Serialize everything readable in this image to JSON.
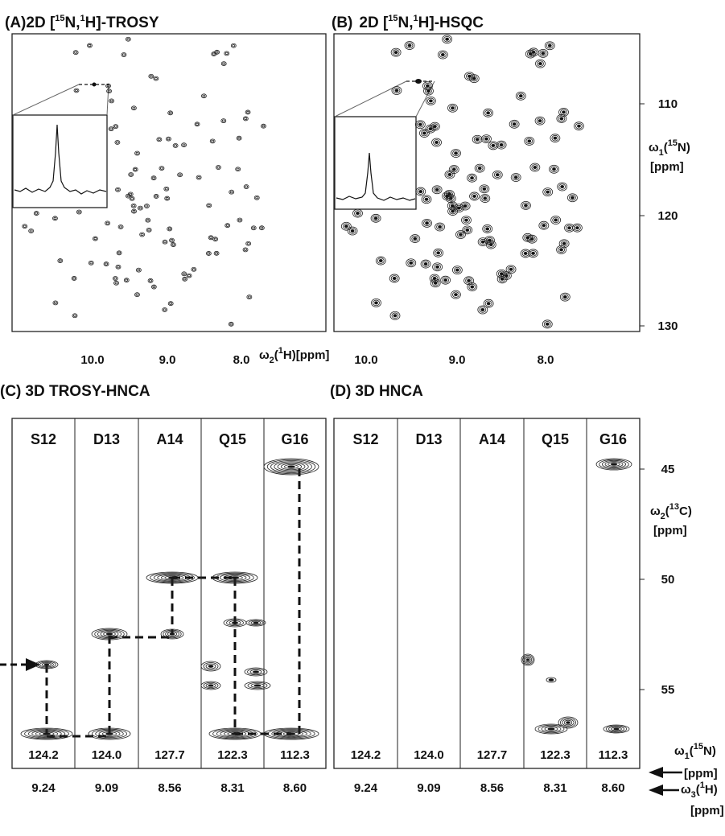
{
  "panel_a": {
    "label": "(A)",
    "title_parts": [
      "2D [",
      "15",
      "N,",
      "1",
      "H]-TROSY"
    ],
    "x_ticks": [
      "10.0",
      "9.0",
      "8.0"
    ],
    "x_axis_label": [
      "ω",
      "2",
      "(",
      "1",
      "H)[ppm]"
    ]
  },
  "panel_b": {
    "label": "(B)",
    "title_parts": [
      "2D [",
      "15",
      "N,",
      "1",
      "H]-HSQC"
    ],
    "x_ticks": [
      "10.0",
      "9.0",
      "8.0"
    ],
    "y_ticks": [
      "110",
      "120",
      "130"
    ],
    "y_axis_label": [
      "ω",
      "1",
      "(",
      "15",
      "N)",
      "[ppm]"
    ]
  },
  "panel_c": {
    "label": "(C)",
    "title": "3D TROSY-HNCA",
    "strips": [
      {
        "residue": "S12",
        "n15": "124.2",
        "h1": "9.24"
      },
      {
        "residue": "D13",
        "n15": "124.0",
        "h1": "9.09"
      },
      {
        "residue": "A14",
        "n15": "127.7",
        "h1": "8.56"
      },
      {
        "residue": "Q15",
        "n15": "122.3",
        "h1": "8.31"
      },
      {
        "residue": "G16",
        "n15": "112.3",
        "h1": "8.60"
      }
    ]
  },
  "panel_d": {
    "label": "(D)",
    "title": "3D HNCA",
    "strips": [
      {
        "residue": "S12",
        "n15": "124.2",
        "h1": "9.24"
      },
      {
        "residue": "D13",
        "n15": "124.0",
        "h1": "9.09"
      },
      {
        "residue": "A14",
        "n15": "127.7",
        "h1": "8.56"
      },
      {
        "residue": "Q15",
        "n15": "122.3",
        "h1": "8.31"
      },
      {
        "residue": "G16",
        "n15": "112.3",
        "h1": "8.60"
      }
    ]
  },
  "c13_axis": {
    "ticks": [
      "45",
      "50",
      "55"
    ],
    "label": [
      "ω",
      "2",
      "(",
      "13",
      "C)",
      "[ppm]"
    ]
  },
  "n15_strip_label": [
    "ω",
    "1",
    "(",
    "15",
    "N)",
    "[ppm]"
  ],
  "h1_strip_label": [
    "ω",
    "3",
    "(",
    "1",
    "H)",
    "[ppm]"
  ]
}
